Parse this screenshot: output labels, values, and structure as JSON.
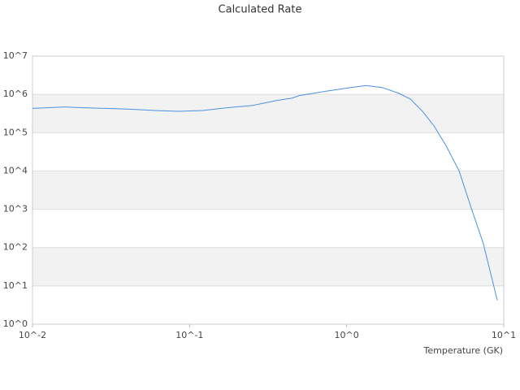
{
  "chart_data": {
    "type": "line",
    "title": "Calculated Rate",
    "x_label": "Temperature (GK)",
    "x_log": true,
    "y_log": true,
    "grid": true,
    "alternate_bands": true,
    "xlim": [
      0.01,
      10
    ],
    "ylim": [
      1,
      10000000
    ],
    "xticks": [
      {
        "value": 0.01,
        "label": "10^-2"
      },
      {
        "value": 0.1,
        "label": "10^-1"
      },
      {
        "value": 1,
        "label": "10^0"
      },
      {
        "value": 10,
        "label": "10^1"
      }
    ],
    "yticks": [
      {
        "value": 1,
        "label": "10^0"
      },
      {
        "value": 10,
        "label": "10^1"
      },
      {
        "value": 100,
        "label": "10^2"
      },
      {
        "value": 1000,
        "label": "10^3"
      },
      {
        "value": 10000,
        "label": "10^4"
      },
      {
        "value": 100000,
        "label": "10^5"
      },
      {
        "value": 1000000,
        "label": "10^6"
      },
      {
        "value": 10000000,
        "label": "10^7"
      }
    ],
    "series": [
      {
        "color": "#4a90e2",
        "x": [
          0.01,
          0.0127,
          0.016,
          0.0204,
          0.0293,
          0.0418,
          0.06,
          0.0855,
          0.122,
          0.175,
          0.25,
          0.357,
          0.45,
          0.5,
          0.733,
          1.05,
          1.33,
          1.69,
          2.14,
          2.54,
          3.04,
          3.6,
          4.3,
          5.2,
          6.2,
          7.4,
          9.1
        ],
        "values": [
          430000,
          450000,
          470000,
          450000,
          430000,
          410000,
          380000,
          360000,
          380000,
          450000,
          510000,
          690000,
          800000,
          930000,
          1200000,
          1500000,
          1700000,
          1500000,
          1070000,
          760000,
          360000,
          150000,
          45000,
          10000,
          1100,
          130,
          4.2
        ]
      }
    ]
  }
}
